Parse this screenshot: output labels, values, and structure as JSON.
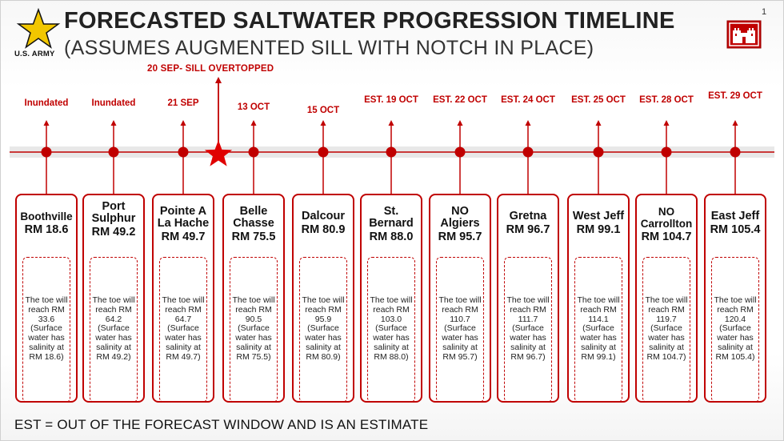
{
  "header": {
    "logo_text": "U.S. ARMY",
    "title": "FORECASTED SALTWATER PROGRESSION TIMELINE",
    "subtitle": "(ASSUMES AUGMENTED SILL WITH NOTCH IN PLACE)",
    "page_number": "1"
  },
  "event": {
    "label": "20 SEP- SILL OVERTOPPED"
  },
  "colors": {
    "accent": "#c00000",
    "track": "#e8e8e8",
    "text": "#222222"
  },
  "locations": [
    {
      "date": "Inundated",
      "name": "Boothville",
      "rm": "RM 18.6",
      "note": "The toe will reach RM 33.6 (Surface water has salinity at RM 18.6)"
    },
    {
      "date": "Inundated",
      "name": "Port Sulphur",
      "rm": "RM 49.2",
      "note": "The toe will reach RM 64.2 (Surface water has salinity at RM 49.2)"
    },
    {
      "date": "21 SEP",
      "name": "Pointe A La Hache",
      "rm": "RM 49.7",
      "note": "The toe will reach RM 64.7 (Surface water has salinity at RM 49.7)"
    },
    {
      "date": "13 OCT",
      "name": "Belle Chasse",
      "rm": "RM 75.5",
      "note": "The toe will reach RM 90.5 (Surface water has salinity at RM 75.5)"
    },
    {
      "date": "15 OCT",
      "name": "Dalcour",
      "rm": "RM 80.9",
      "note": "The toe will reach RM 95.9 (Surface water has salinity at RM 80.9)"
    },
    {
      "date": "EST. 19 OCT",
      "name": "St. Bernard",
      "rm": "RM 88.0",
      "note": "The toe will reach RM 103.0 (Surface water has salinity at RM 88.0)"
    },
    {
      "date": "EST. 22 OCT",
      "name": "NO Algiers",
      "rm": "RM 95.7",
      "note": "The toe will reach RM 110.7 (Surface water has salinity at RM 95.7)"
    },
    {
      "date": "EST. 24 OCT",
      "name": "Gretna",
      "rm": "RM 96.7",
      "note": "The toe will reach RM 111.7 (Surface water has salinity at RM 96.7)"
    },
    {
      "date": "EST. 25 OCT",
      "name": "West Jeff",
      "rm": "RM 99.1",
      "note": "The toe will reach RM 114.1 (Surface water has salinity at RM 99.1)"
    },
    {
      "date": "EST. 28 OCT",
      "name": "NO Carrollton",
      "rm": "RM 104.7",
      "note": "The toe will reach RM 119.7 (Surface water has salinity at RM 104.7)"
    },
    {
      "date": "EST. 29 OCT",
      "name": "East Jeff",
      "rm": "RM 105.4",
      "note": "The toe will reach RM 120.4 (Surface water has salinity at RM 105.4)"
    }
  ],
  "footer": {
    "note": "EST = OUT OF THE FORECAST WINDOW AND IS AN ESTIMATE"
  }
}
